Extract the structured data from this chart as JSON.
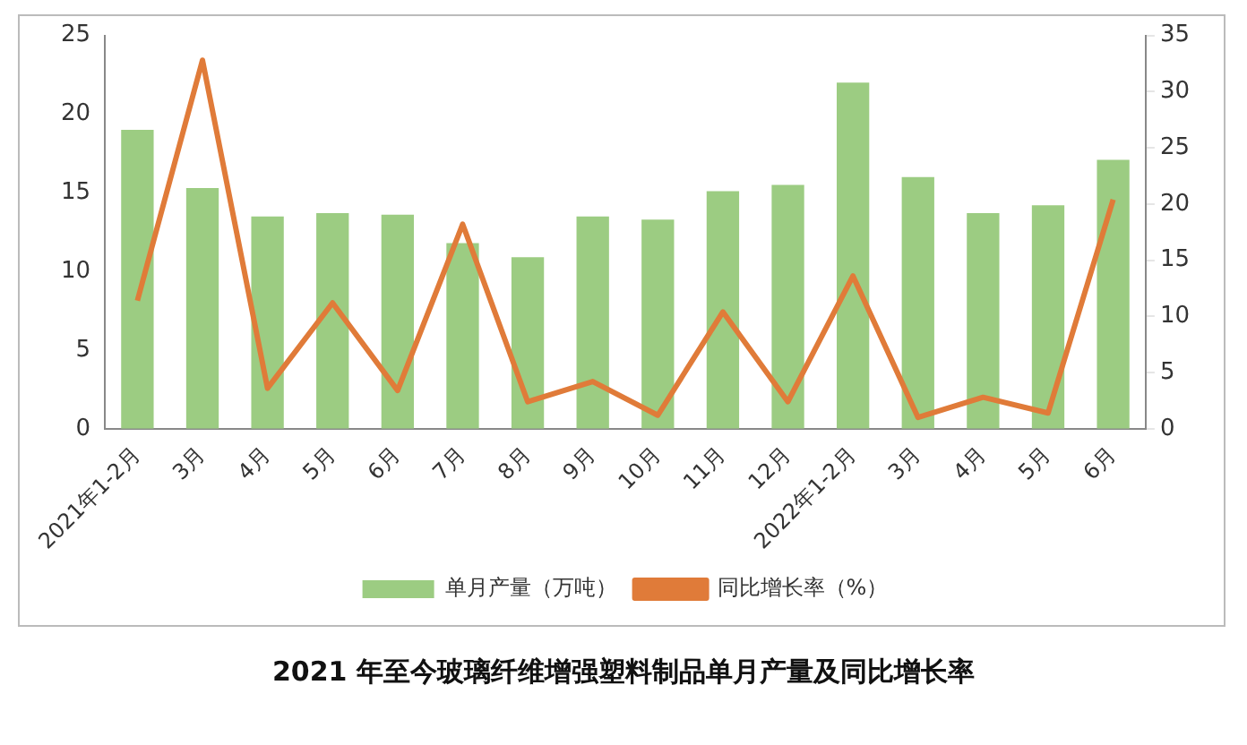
{
  "chart_data": {
    "type": "bar",
    "title": "2021 年至今玻璃纤维增强塑料制品单月产量及同比增长率",
    "categories": [
      "2021年1-2月",
      "3月",
      "4月",
      "5月",
      "6月",
      "7月",
      "8月",
      "9月",
      "10月",
      "11月",
      "12月",
      "2022年1-2月",
      "3月",
      "4月",
      "5月",
      "6月"
    ],
    "series": [
      {
        "name": "单月产量（万吨）",
        "color": "#9ccc82",
        "values": [
          19,
          15.3,
          13.5,
          13.7,
          13.6,
          11.8,
          10.9,
          13.5,
          13.3,
          15.1,
          15.5,
          22,
          16,
          13.7,
          14.2,
          17.1
        ]
      },
      {
        "name": "同比增长率（%）",
        "type": "line",
        "axis": "y2",
        "color": "#e07b39",
        "values": [
          11.4,
          32.8,
          3.6,
          11.2,
          3.4,
          18.2,
          2.4,
          4.2,
          1.2,
          10.4,
          2.4,
          13.6,
          1.0,
          2.8,
          1.4,
          20.4
        ]
      }
    ],
    "ylim": [
      0,
      25
    ],
    "yticks": [
      0,
      5,
      10,
      15,
      20,
      25
    ],
    "y2lim": [
      0,
      35
    ],
    "y2ticks": [
      0,
      5,
      10,
      15,
      20,
      25,
      30,
      35
    ],
    "grid": false,
    "legend": "bottom",
    "marker": "none"
  }
}
